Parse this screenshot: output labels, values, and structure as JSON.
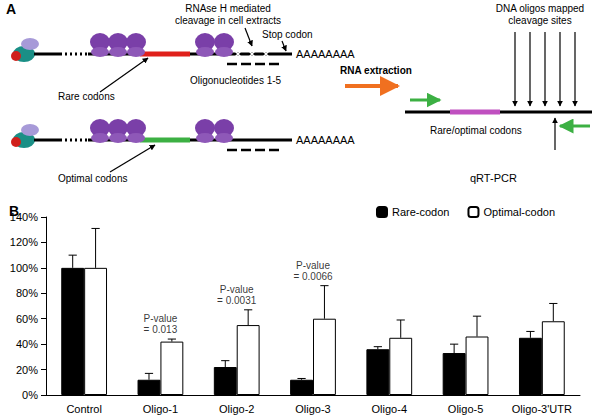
{
  "panel_a": {
    "label": "A",
    "cleavage_note": [
      "RNAse H mediated",
      "cleavage in cell extracts"
    ],
    "stop_codon": "Stop codon",
    "poly_a": "AAAAAAAA",
    "rare_codons": "Rare codons",
    "oligonucleotides": "Oligonucleotides 1-5",
    "optimal_codons": "Optimal codons",
    "rna_extraction": "RNA extraction",
    "dna_oligos": [
      "DNA oligos mapped",
      "cleavage sites"
    ],
    "rare_optimal_codons": "Rare/optimal codons",
    "qrt_pcr": "qRT-PCR"
  },
  "chart_data": {
    "type": "bar",
    "panel_label": "B",
    "categories": [
      "Control",
      "Oligo-1",
      "Oligo-2",
      "Oligo-3",
      "Oligo-4",
      "Oligo-5",
      "Oligo-3'UTR"
    ],
    "series": [
      {
        "name": "Rare-codon",
        "color": "#000000",
        "values": [
          100,
          12,
          22,
          12,
          36,
          33,
          45
        ],
        "errors": [
          10,
          5,
          5,
          1,
          2,
          7,
          5
        ]
      },
      {
        "name": "Optimal-codon",
        "color": "#ffffff",
        "values": [
          100,
          42,
          55,
          60,
          45,
          46,
          58
        ],
        "errors": [
          31,
          2,
          12,
          26,
          14,
          16,
          14
        ]
      }
    ],
    "ylim": [
      0,
      140
    ],
    "yticks": [
      {
        "value": 0,
        "label": "0%"
      },
      {
        "value": 20,
        "label": "20%"
      },
      {
        "value": 40,
        "label": "40%"
      },
      {
        "value": 60,
        "label": "60%"
      },
      {
        "value": 80,
        "label": "80%"
      },
      {
        "value": 100,
        "label": "100%"
      },
      {
        "value": 120,
        "label": "120%"
      },
      {
        "value": 140,
        "label": "140%"
      }
    ],
    "annotations": [
      {
        "category": "Oligo-1",
        "text": [
          "P-value",
          "= 0.013"
        ]
      },
      {
        "category": "Oligo-2",
        "text": [
          "P-value",
          "= 0.0031"
        ]
      },
      {
        "category": "Oligo-3",
        "text": [
          "P-value",
          "= 0.0066"
        ]
      }
    ],
    "legend": "upper right",
    "grid": false
  }
}
